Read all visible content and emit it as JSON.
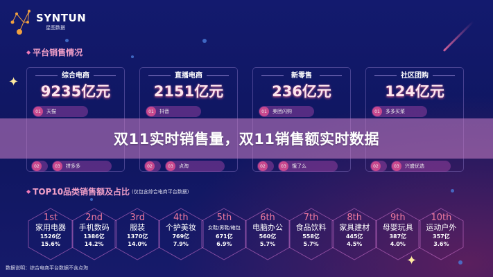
{
  "logo": {
    "name": "SYNTUN",
    "subtitle": "星图数据"
  },
  "platform_section": {
    "title": "平台销售情况"
  },
  "cards": [
    {
      "title": "综合电商",
      "value": "9235亿元",
      "ranks": [
        {
          "num": "01",
          "name": "天猫"
        },
        {
          "num": "02",
          "name": ""
        },
        {
          "num": "03",
          "name": "拼多多"
        }
      ]
    },
    {
      "title": "直播电商",
      "value": "2151亿元",
      "ranks": [
        {
          "num": "01",
          "name": "抖音"
        },
        {
          "num": "02",
          "name": ""
        },
        {
          "num": "03",
          "name": "点淘"
        }
      ]
    },
    {
      "title": "新零售",
      "value": "236亿元",
      "ranks": [
        {
          "num": "01",
          "name": "美团闪购"
        },
        {
          "num": "02",
          "name": ""
        },
        {
          "num": "03",
          "name": "饿了么"
        }
      ]
    },
    {
      "title": "社区团购",
      "value": "124亿元",
      "ranks": [
        {
          "num": "01",
          "name": "多多买菜"
        },
        {
          "num": "02",
          "name": ""
        },
        {
          "num": "03",
          "name": "兴盛优选"
        }
      ]
    }
  ],
  "banner": {
    "title": "双11实时销售量，双11销售额实时数据"
  },
  "top10_section": {
    "title": "TOP10品类销售额及占比",
    "subtitle": "(仅包含综合电商平台数据)"
  },
  "categories": [
    {
      "rank": "1st",
      "name": "家用电器",
      "amount": "1526亿",
      "share": "15.6%"
    },
    {
      "rank": "2nd",
      "name": "手机数码",
      "amount": "1386亿",
      "share": "14.2%"
    },
    {
      "rank": "3rd",
      "name": "服装",
      "amount": "1370亿",
      "share": "14.0%"
    },
    {
      "rank": "4th",
      "name": "个护美妆",
      "amount": "769亿",
      "share": "7.9%"
    },
    {
      "rank": "5th",
      "name": "女鞋/男鞋/箱包",
      "amount": "671亿",
      "share": "6.9%"
    },
    {
      "rank": "6th",
      "name": "电脑办公",
      "amount": "560亿",
      "share": "5.7%"
    },
    {
      "rank": "7th",
      "name": "食品饮料",
      "amount": "558亿",
      "share": "5.7%"
    },
    {
      "rank": "8th",
      "name": "家具建材",
      "amount": "445亿",
      "share": "4.5%"
    },
    {
      "rank": "9th",
      "name": "母婴玩具",
      "amount": "387亿",
      "share": "4.0%"
    },
    {
      "rank": "10th",
      "name": "运动户外",
      "amount": "357亿",
      "share": "3.6%"
    }
  ],
  "footnote": "数据说明：综合电商平台数据不含点淘"
}
